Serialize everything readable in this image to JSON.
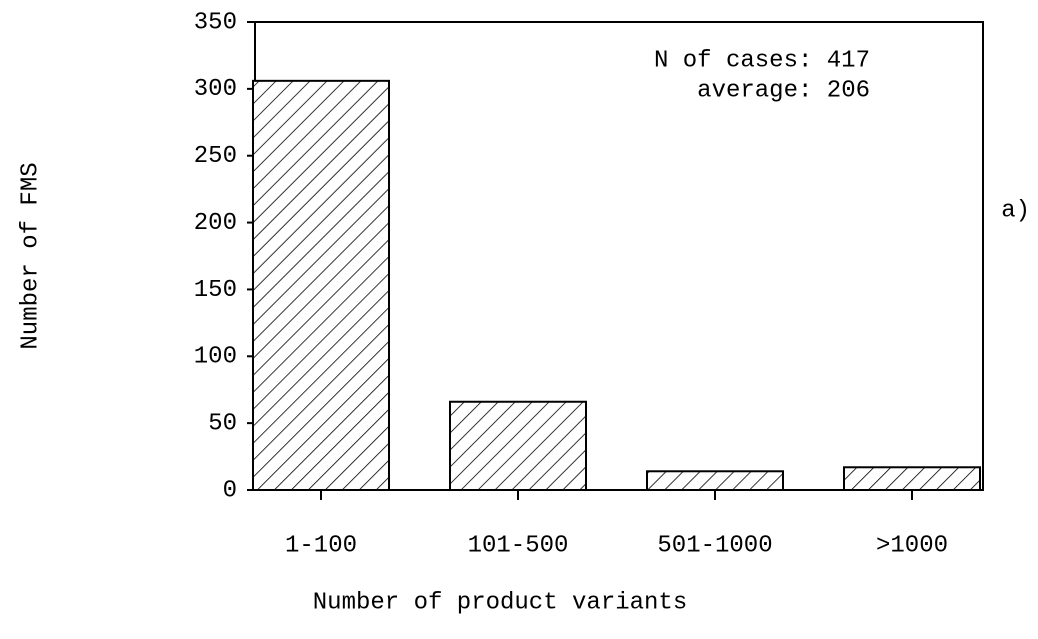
{
  "chart_data": {
    "type": "bar",
    "x_label": "Number of product variants",
    "y_label": "Number of FMS",
    "annotations": [
      "N of cases: 417",
      "average: 206"
    ],
    "panel_label": "a)",
    "categories": [
      "1-100",
      "101-500",
      "501-1000",
      ">1000"
    ],
    "values": [
      306,
      66,
      14,
      17
    ],
    "color": "#000000",
    "ylim": [
      0,
      350
    ],
    "yticks": [
      0,
      50,
      100,
      150,
      200,
      250,
      300,
      350
    ],
    "grid": false
  }
}
